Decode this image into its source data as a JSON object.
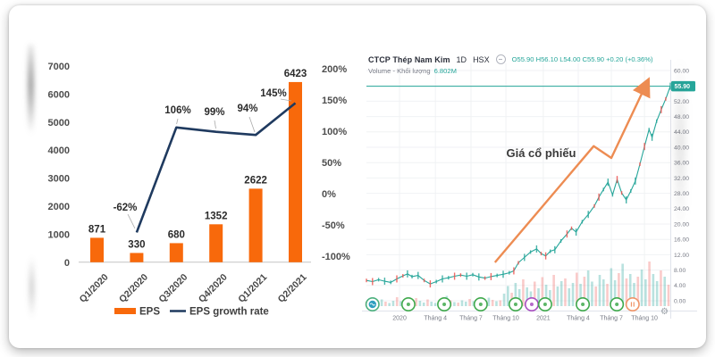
{
  "icons": {
    "gear": "⚙"
  },
  "chart_data": [
    {
      "type": "bar+line",
      "title": "",
      "categories": [
        "Q1/2020",
        "Q2/2020",
        "Q3/2020",
        "Q4/2020",
        "Q1/2021",
        "Q2/2021"
      ],
      "bar_series": {
        "name": "EPS",
        "color": "#F8690B",
        "values": [
          871,
          330,
          680,
          1352,
          2622,
          6423
        ],
        "labels": [
          "871",
          "330",
          "680",
          "1352",
          "2622",
          "6423"
        ]
      },
      "line_series": {
        "name": "EPS growth rate",
        "color": "#1F3A5F",
        "values": [
          null,
          -62,
          106,
          99,
          94,
          145
        ],
        "labels": [
          "-62%",
          "106%",
          "99%",
          "94%",
          "145%"
        ]
      },
      "left_axis": {
        "min": 0,
        "max": 7000,
        "step": 1000,
        "ticks": [
          "7000",
          "6000",
          "5000",
          "4000",
          "3000",
          "2000",
          "1000",
          "0"
        ]
      },
      "right_axis": {
        "ticks": [
          {
            "v": 200,
            "t": "200%"
          },
          {
            "v": 150,
            "t": "150%"
          },
          {
            "v": 100,
            "t": "100%"
          },
          {
            "v": 50,
            "t": "50%"
          },
          {
            "v": 0,
            "t": "0%"
          },
          {
            "v": -50,
            "t": "-50%"
          },
          {
            "v": -100,
            "t": "-100%"
          }
        ]
      },
      "legend": [
        "EPS",
        "EPS growth rate"
      ],
      "grid": "off",
      "legend_position": "bottom"
    },
    {
      "type": "candlestick",
      "header": {
        "title": "CTCP Thép Nam Kim",
        "interval": "1D",
        "exchange": "HSX",
        "ohlc": "O55.90 H56.10 L54.00 C55.90 +0.20 (+0.36%)",
        "volume_label": "Volume - Khối lượng",
        "volume_value": "6.802M"
      },
      "annotation": {
        "text": "Giá cổ phiếu",
        "x": 0.575,
        "price": 37
      },
      "price_axis": {
        "min": 0,
        "max": 60,
        "step": 4,
        "ticks": [
          {
            "v": 60,
            "t": "60.00"
          },
          {
            "v": 52,
            "t": "52.00"
          },
          {
            "v": 48,
            "t": "48.00"
          },
          {
            "v": 44,
            "t": "44.00"
          },
          {
            "v": 40,
            "t": "40.00"
          },
          {
            "v": 36,
            "t": "36.00"
          },
          {
            "v": 32,
            "t": "32.00"
          },
          {
            "v": 28,
            "t": "28.00"
          },
          {
            "v": 24,
            "t": "24.00"
          },
          {
            "v": 20,
            "t": "20.00"
          },
          {
            "v": 16,
            "t": "16.00"
          },
          {
            "v": 12,
            "t": "12.00"
          },
          {
            "v": 8,
            "t": "8.00"
          },
          {
            "v": 4,
            "t": "4.00"
          },
          {
            "v": 0,
            "t": "0.00"
          }
        ],
        "current": {
          "v": 55.9,
          "t": "55.90"
        }
      },
      "time_axis": [
        {
          "x": 0.109,
          "t": "2020"
        },
        {
          "x": 0.227,
          "t": "Tháng 4"
        },
        {
          "x": 0.344,
          "t": "Tháng 7"
        },
        {
          "x": 0.459,
          "t": "Tháng 10"
        },
        {
          "x": 0.582,
          "t": "2021"
        },
        {
          "x": 0.697,
          "t": "Tháng 4"
        },
        {
          "x": 0.806,
          "t": "Tháng 7"
        },
        {
          "x": 0.915,
          "t": "Tháng 10"
        }
      ],
      "series": [
        [
          0,
          5.3
        ],
        [
          0.02,
          5.0
        ],
        [
          0.04,
          5.5
        ],
        [
          0.06,
          5.1
        ],
        [
          0.08,
          4.8
        ],
        [
          0.1,
          5.7
        ],
        [
          0.12,
          6.5
        ],
        [
          0.135,
          7.0
        ],
        [
          0.15,
          6.3
        ],
        [
          0.17,
          6.6
        ],
        [
          0.19,
          5.3
        ],
        [
          0.21,
          4.4
        ],
        [
          0.23,
          5.0
        ],
        [
          0.25,
          5.7
        ],
        [
          0.27,
          6.0
        ],
        [
          0.29,
          6.4
        ],
        [
          0.31,
          6.7
        ],
        [
          0.33,
          6.4
        ],
        [
          0.35,
          6.8
        ],
        [
          0.37,
          6.2
        ],
        [
          0.39,
          5.9
        ],
        [
          0.41,
          6.3
        ],
        [
          0.43,
          6.6
        ],
        [
          0.45,
          6.9
        ],
        [
          0.47,
          7.3
        ],
        [
          0.485,
          7.8
        ],
        [
          0.5,
          9.9
        ],
        [
          0.52,
          11.3
        ],
        [
          0.54,
          12.7
        ],
        [
          0.56,
          13.5
        ],
        [
          0.575,
          12.3
        ],
        [
          0.59,
          11.7
        ],
        [
          0.605,
          12.9
        ],
        [
          0.62,
          13.3
        ],
        [
          0.64,
          15.6
        ],
        [
          0.66,
          17.4
        ],
        [
          0.675,
          18.9
        ],
        [
          0.69,
          17.9
        ],
        [
          0.71,
          20.6
        ],
        [
          0.73,
          22.5
        ],
        [
          0.75,
          24.7
        ],
        [
          0.765,
          27.0
        ],
        [
          0.78,
          29.0
        ],
        [
          0.795,
          30.9
        ],
        [
          0.81,
          27.6
        ],
        [
          0.825,
          31.6
        ],
        [
          0.84,
          28.1
        ],
        [
          0.855,
          26.3
        ],
        [
          0.87,
          28.6
        ],
        [
          0.885,
          31.2
        ],
        [
          0.9,
          35.6
        ],
        [
          0.915,
          40.2
        ],
        [
          0.93,
          44.6
        ],
        [
          0.94,
          42.6
        ],
        [
          0.955,
          46.8
        ],
        [
          0.97,
          49.8
        ],
        [
          0.985,
          52.6
        ],
        [
          1.0,
          55.9
        ]
      ],
      "volume": [
        0.1,
        0.07,
        0.12,
        0.08,
        0.15,
        0.1,
        0.07,
        0.12,
        0.2,
        0.11,
        0.08,
        0.14,
        0.1,
        0.18,
        0.12,
        0.08,
        0.15,
        0.1,
        0.07,
        0.12,
        0.17,
        0.23,
        0.13,
        0.09,
        0.08,
        0.13,
        0.1,
        0.16,
        0.11,
        0.09,
        0.13,
        0.1,
        0.19,
        0.14,
        0.11,
        0.13,
        0.28,
        0.45,
        0.3,
        0.52,
        0.38,
        0.6,
        0.42,
        0.33,
        0.55,
        0.4,
        0.65,
        0.48,
        0.36,
        0.7,
        0.44,
        0.56,
        0.62,
        0.4,
        0.52,
        0.75,
        0.5,
        0.66,
        0.8,
        0.55,
        0.44,
        0.7,
        0.6,
        0.5,
        0.85,
        0.58,
        0.74,
        0.95,
        0.62,
        0.72,
        0.52,
        0.66,
        0.82,
        0.6,
        1.0,
        0.72,
        0.56,
        0.8,
        0.66,
        0.48
      ],
      "trend_arrow": [
        [
          0.423,
          10
        ],
        [
          0.748,
          40.3
        ],
        [
          0.806,
          37.2
        ],
        [
          0.92,
          56.3
        ]
      ],
      "markers": [
        {
          "x": 0.02,
          "kind": "logo"
        },
        {
          "x": 0.138,
          "kind": "green"
        },
        {
          "x": 0.256,
          "kind": "green"
        },
        {
          "x": 0.376,
          "kind": "green"
        },
        {
          "x": 0.491,
          "kind": "green"
        },
        {
          "x": 0.544,
          "kind": "purple"
        },
        {
          "x": 0.588,
          "kind": "green"
        },
        {
          "x": 0.712,
          "kind": "green"
        },
        {
          "x": 0.824,
          "kind": "green"
        },
        {
          "x": 0.876,
          "kind": "orange"
        }
      ],
      "colors": {
        "up": "#26A69A",
        "down": "#EF5350",
        "arrow": "#ED8C52",
        "axis_text": "#787B86",
        "grid": "#F0F2F4",
        "marker_green": "#3FA94C",
        "marker_purple": "#A84FC0",
        "marker_orange": "#F09468",
        "logo_fill": "#2F9FC0"
      }
    }
  ]
}
